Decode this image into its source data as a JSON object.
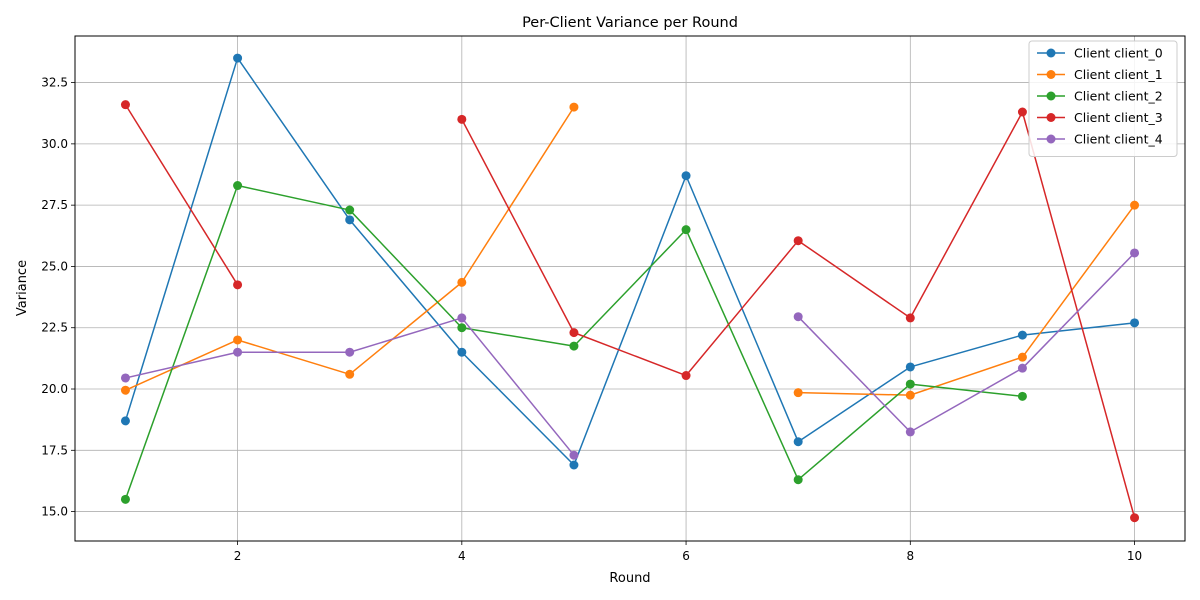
{
  "chart_data": {
    "type": "line",
    "title": "Per-Client Variance per Round",
    "xlabel": "Round",
    "ylabel": "Variance",
    "xlim": [
      0.55,
      10.45
    ],
    "ylim": [
      13.8,
      34.4
    ],
    "xticks": [
      2,
      4,
      6,
      8,
      10
    ],
    "yticks": [
      15.0,
      17.5,
      20.0,
      22.5,
      25.0,
      27.5,
      30.0,
      32.5
    ],
    "ytick_labels": [
      "15.0",
      "17.5",
      "20.0",
      "22.5",
      "25.0",
      "27.5",
      "30.0",
      "32.5"
    ],
    "grid": true,
    "legend_position": "top-right",
    "x": [
      1,
      2,
      3,
      4,
      5,
      6,
      7,
      8,
      9,
      10
    ],
    "series": [
      {
        "name": "Client client_0",
        "color": "#1f77b4",
        "values": [
          18.7,
          33.5,
          26.9,
          21.5,
          16.9,
          28.7,
          17.85,
          20.9,
          22.2,
          22.7
        ]
      },
      {
        "name": "Client client_1",
        "color": "#ff7f0e",
        "values": [
          19.95,
          22.0,
          20.6,
          24.35,
          31.5,
          null,
          19.85,
          19.75,
          21.3,
          27.5
        ]
      },
      {
        "name": "Client client_2",
        "color": "#2ca02c",
        "values": [
          15.5,
          28.3,
          27.3,
          22.5,
          21.75,
          26.5,
          16.3,
          20.2,
          19.7,
          null
        ]
      },
      {
        "name": "Client client_3",
        "color": "#d62728",
        "values": [
          31.6,
          24.25,
          null,
          31.0,
          22.3,
          20.55,
          26.05,
          22.9,
          31.3,
          14.75
        ]
      },
      {
        "name": "Client client_4",
        "color": "#9467bd",
        "values": [
          20.45,
          21.5,
          21.5,
          22.9,
          17.3,
          null,
          22.95,
          18.25,
          20.85,
          25.55
        ]
      }
    ]
  }
}
